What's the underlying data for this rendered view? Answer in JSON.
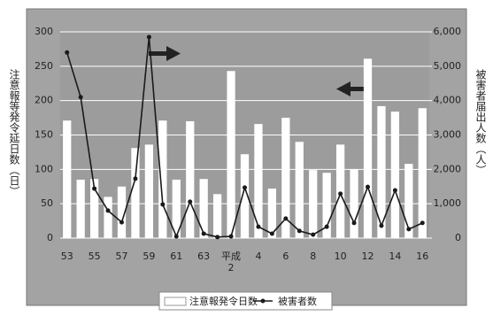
{
  "chart_data": {
    "type": "bar-line",
    "ylabel": "注意報等発令延日数（日）",
    "y2label": "被害者届出人数（人）",
    "categories": [
      "53",
      null,
      "55",
      null,
      "57",
      null,
      "59",
      null,
      "61",
      null,
      "63",
      null,
      "平成\n2",
      null,
      "4",
      null,
      "6",
      null,
      "8",
      null,
      "10",
      null,
      "12",
      null,
      "14",
      null,
      "16"
    ],
    "series": [
      {
        "name": "注意報発令日数",
        "type": "bar",
        "color": "#ffffff",
        "values": [
          171,
          85,
          86,
          60,
          75,
          131,
          136,
          171,
          85,
          170,
          86,
          64,
          243,
          122,
          166,
          72,
          175,
          140,
          99,
          95,
          136,
          100,
          261,
          192,
          184,
          108,
          189
        ]
      },
      {
        "name": "被害者数",
        "type": "line",
        "axis": "y2",
        "color": "#1a1a1a",
        "values": [
          5400,
          4100,
          1440,
          800,
          460,
          1730,
          5850,
          980,
          50,
          1060,
          130,
          30,
          50,
          1470,
          330,
          130,
          570,
          210,
          100,
          330,
          1290,
          440,
          1490,
          360,
          1390,
          260,
          440
        ]
      }
    ],
    "ylim": [
      0,
      300
    ],
    "yticks": [
      0,
      50,
      100,
      150,
      200,
      250,
      300
    ],
    "y2lim": [
      0,
      6000
    ],
    "y2ticks": [
      0,
      {
        "value": 1000,
        "label": "1,000"
      },
      {
        "value": 2000,
        "label": "2,000"
      },
      {
        "value": 3000,
        "label": "3,000"
      },
      {
        "value": 4000,
        "label": "4,000"
      },
      {
        "value": 5000,
        "label": "5,000"
      },
      {
        "value": 6000,
        "label": "6,000"
      }
    ],
    "grid": true
  }
}
